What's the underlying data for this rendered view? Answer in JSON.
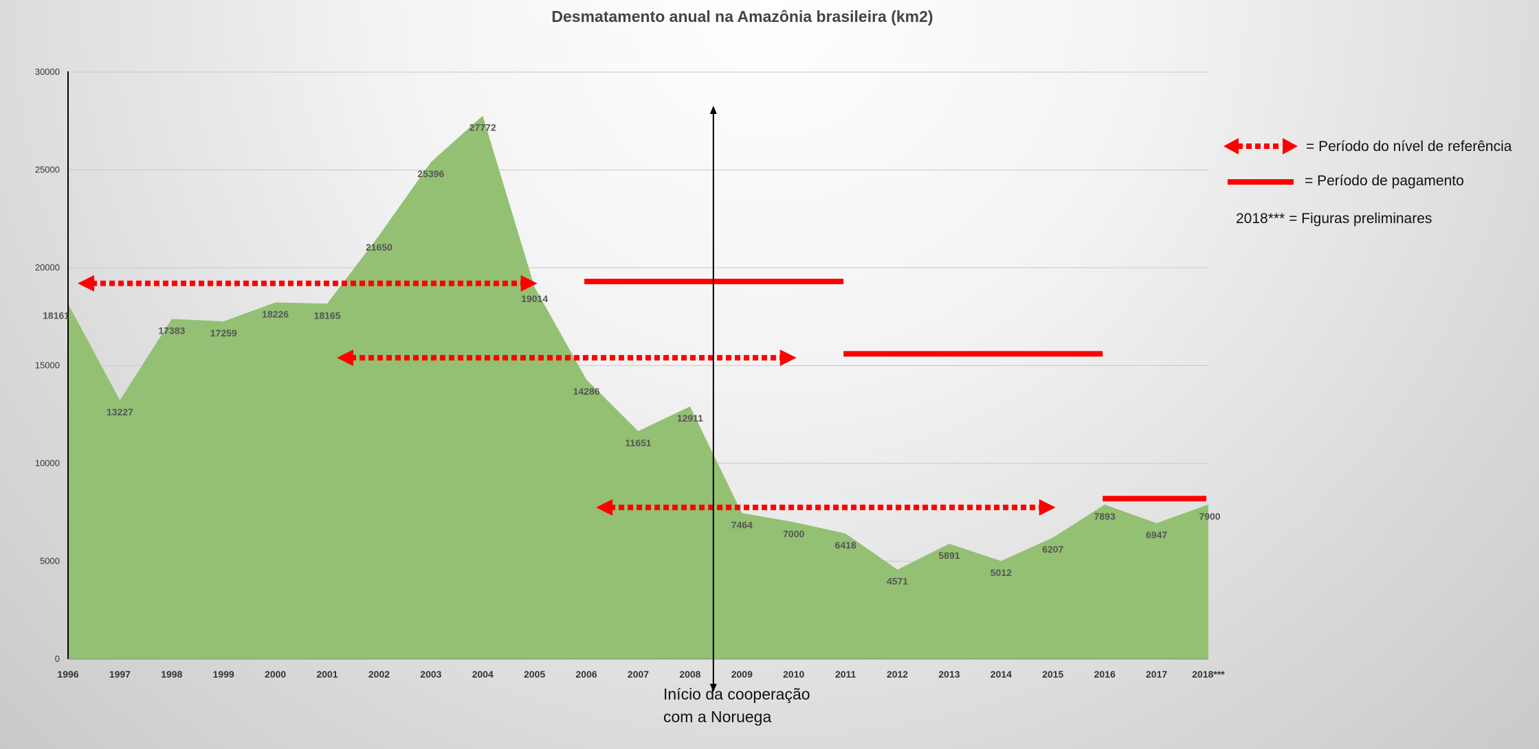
{
  "chart_data": {
    "type": "area",
    "title": "Desmatamento anual na Amazônia brasileira (km2)",
    "xlabel": "",
    "ylabel": "",
    "ylim": [
      0,
      30000
    ],
    "yticks": [
      0,
      5000,
      10000,
      15000,
      20000,
      25000,
      30000
    ],
    "categories": [
      "1996",
      "1997",
      "1998",
      "1999",
      "2000",
      "2001",
      "2002",
      "2003",
      "2004",
      "2005",
      "2006",
      "2007",
      "2008",
      "2009",
      "2010",
      "2011",
      "2012",
      "2013",
      "2014",
      "2015",
      "2016",
      "2017",
      "2018***"
    ],
    "values": [
      18161,
      13227,
      17383,
      17259,
      18226,
      18165,
      21650,
      25396,
      27772,
      19014,
      14286,
      11651,
      12911,
      7464,
      7000,
      6418,
      4571,
      5891,
      5012,
      6207,
      7893,
      6947,
      7900
    ],
    "data_labels": [
      "18161",
      "13227",
      "17383",
      "17259",
      "18226",
      "18165",
      "21650",
      "25396",
      "27772",
      "19014",
      "14286",
      "11651",
      "12911",
      "7464",
      "7000",
      "6418",
      "4571",
      "5891",
      "5012",
      "6207",
      "7893",
      "6947",
      "7900"
    ],
    "fill_color": "#93c072",
    "grid": true,
    "reference_periods": [
      {
        "start_year": 1996,
        "end_year": 2005,
        "level": 19200
      },
      {
        "start_year": 2001,
        "end_year": 2010,
        "level": 15400
      },
      {
        "start_year": 2006,
        "end_year": 2015,
        "level": 7750
      }
    ],
    "payment_periods": [
      {
        "start_year": 2006,
        "end_year": 2011,
        "level": 19300
      },
      {
        "start_year": 2011,
        "end_year": 2016,
        "level": 15600
      },
      {
        "start_year": 2016,
        "end_year": 2018,
        "level": 8200
      }
    ],
    "cooperation_year": 2008.45,
    "annotation": {
      "line1": "Início da cooperação",
      "line2": "com a Noruega"
    },
    "legend": {
      "reference_label": "= Período do nível de referência",
      "payment_label": "= Período de pagamento",
      "preliminary_label": "2018*** = Figuras preliminares"
    },
    "accent_color": "#ff0000"
  }
}
